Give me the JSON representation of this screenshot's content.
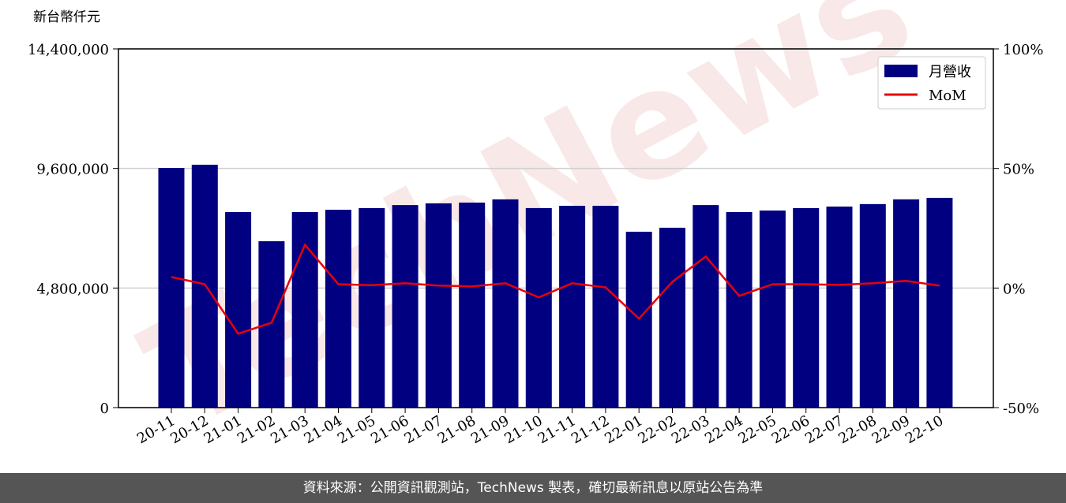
{
  "chart_data": {
    "type": "bar",
    "y_axis_label": "新台幣仟元",
    "watermark": "TechNews",
    "categories": [
      "20-11",
      "20-12",
      "21-01",
      "21-02",
      "21-03",
      "21-04",
      "21-05",
      "21-06",
      "21-07",
      "21-08",
      "21-09",
      "21-10",
      "21-11",
      "21-12",
      "22-01",
      "22-02",
      "22-03",
      "22-04",
      "22-05",
      "22-06",
      "22-07",
      "22-08",
      "22-09",
      "22-10"
    ],
    "series": [
      {
        "name": "月營收",
        "type": "bar",
        "color": "#000080",
        "values": [
          9620000,
          9750000,
          7850000,
          6680000,
          7850000,
          7940000,
          8010000,
          8130000,
          8200000,
          8230000,
          8360000,
          8010000,
          8100000,
          8100000,
          7060000,
          7220000,
          8130000,
          7850000,
          7910000,
          8010000,
          8070000,
          8170000,
          8360000,
          8420000
        ]
      },
      {
        "name": "MoM",
        "type": "line",
        "axis": "y2",
        "color": "#e8000b",
        "values": [
          4.6,
          1.6,
          -19.1,
          -14.5,
          18.1,
          1.6,
          1.2,
          2.0,
          1.0,
          0.7,
          2.0,
          -3.9,
          2.0,
          0.3,
          -12.8,
          2.6,
          13.2,
          -3.3,
          1.6,
          1.6,
          1.3,
          2.0,
          3.0,
          1.0
        ]
      }
    ],
    "ylim": [
      0,
      14400000
    ],
    "yticks": [
      {
        "value": 0,
        "label": "0"
      },
      {
        "value": 4800000,
        "label": "4,800,000"
      },
      {
        "value": 9600000,
        "label": "9,600,000"
      },
      {
        "value": 14400000,
        "label": "14,400,000"
      }
    ],
    "y2lim": [
      -50,
      100
    ],
    "y2ticks": [
      {
        "value": -50,
        "label": "-50%"
      },
      {
        "value": 0,
        "label": "0%"
      },
      {
        "value": 50,
        "label": "50%"
      },
      {
        "value": 100,
        "label": "100%"
      }
    ],
    "grid": true,
    "legend": "upper right"
  },
  "footer": "資料來源：公開資訊觀測站，TechNews 製表，確切最新訊息以原站公告為準"
}
